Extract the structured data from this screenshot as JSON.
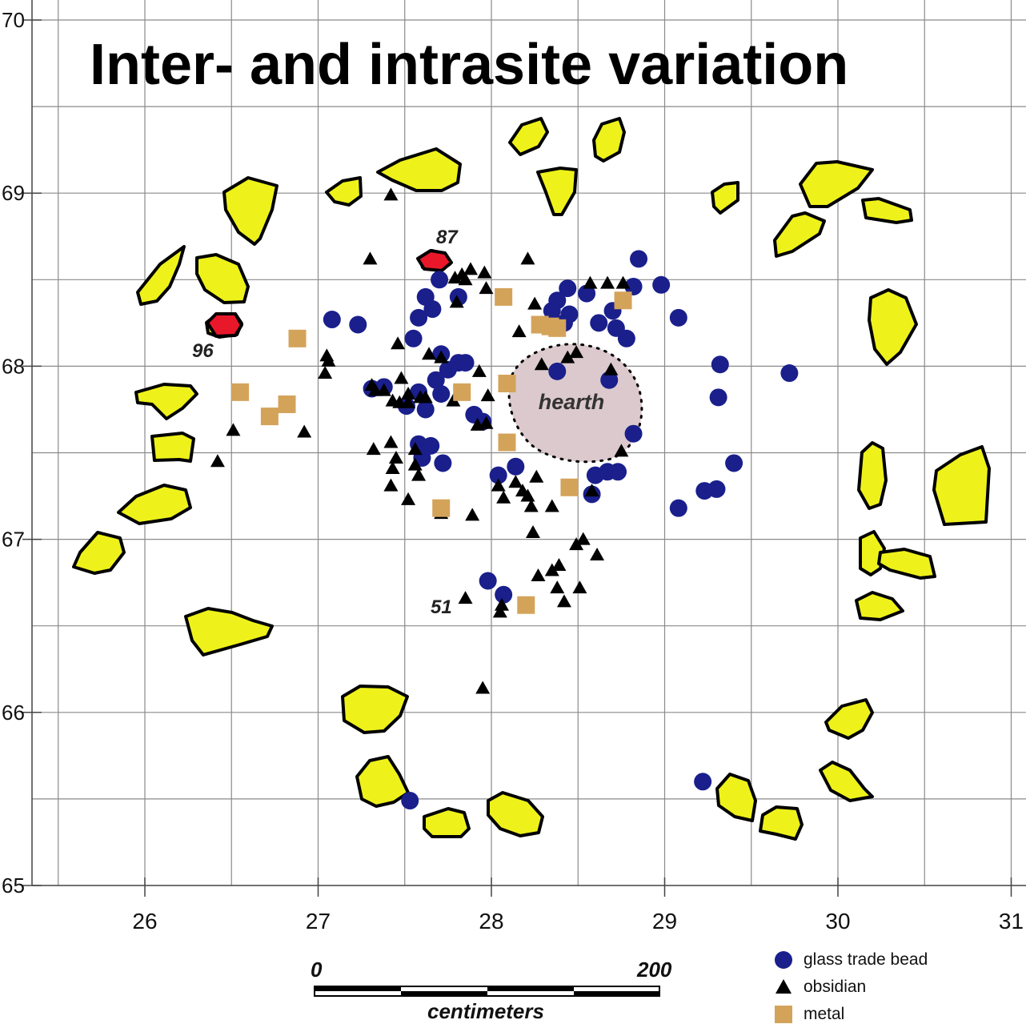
{
  "title": "Inter- and intrasite variation",
  "chart_data": {
    "type": "scatter",
    "x_ticks": [
      "26",
      "27",
      "28",
      "29",
      "30",
      "31"
    ],
    "y_ticks": [
      "70",
      "69",
      "68",
      "67",
      "66",
      "65"
    ],
    "xlim": [
      25.45,
      31.1
    ],
    "ylim": [
      65,
      70.1
    ],
    "grid": true,
    "colors": {
      "glass": "#1a1f8c",
      "obsidian": "#000000",
      "metal": "#d4a35a",
      "rock_fill": "#eef21a",
      "red_rock_fill": "#e8182a",
      "hearth_fill": "#dcc9cd"
    },
    "series": [
      {
        "name": "glass trade bead",
        "marker": "circle",
        "points": [
          [
            28.85,
            68.62
          ],
          [
            28.98,
            68.47
          ],
          [
            29.08,
            68.28
          ],
          [
            28.82,
            68.46
          ],
          [
            28.78,
            68.16
          ],
          [
            28.55,
            68.42
          ],
          [
            28.62,
            68.25
          ],
          [
            28.7,
            68.32
          ],
          [
            28.44,
            68.45
          ],
          [
            28.38,
            68.38
          ],
          [
            28.42,
            68.25
          ],
          [
            28.35,
            68.32
          ],
          [
            28.45,
            68.3
          ],
          [
            28.72,
            68.22
          ],
          [
            27.7,
            68.5
          ],
          [
            27.62,
            68.4
          ],
          [
            27.66,
            68.33
          ],
          [
            27.58,
            68.28
          ],
          [
            27.55,
            68.16
          ],
          [
            27.08,
            68.27
          ],
          [
            27.23,
            68.24
          ],
          [
            27.81,
            68.4
          ],
          [
            27.71,
            68.07
          ],
          [
            27.75,
            67.98
          ],
          [
            27.81,
            68.02
          ],
          [
            27.85,
            68.02
          ],
          [
            27.68,
            67.92
          ],
          [
            27.58,
            67.85
          ],
          [
            27.71,
            67.84
          ],
          [
            27.62,
            67.75
          ],
          [
            27.51,
            67.77
          ],
          [
            27.38,
            67.88
          ],
          [
            27.31,
            67.87
          ],
          [
            27.9,
            67.72
          ],
          [
            27.95,
            67.68
          ],
          [
            27.58,
            67.55
          ],
          [
            27.65,
            67.54
          ],
          [
            27.6,
            67.47
          ],
          [
            27.72,
            67.44
          ],
          [
            28.04,
            67.37
          ],
          [
            28.14,
            67.42
          ],
          [
            28.38,
            67.97
          ],
          [
            28.68,
            67.92
          ],
          [
            28.82,
            67.61
          ],
          [
            28.67,
            67.39
          ],
          [
            28.73,
            67.39
          ],
          [
            28.6,
            67.37
          ],
          [
            28.58,
            67.26
          ],
          [
            29.32,
            68.01
          ],
          [
            29.31,
            67.82
          ],
          [
            29.72,
            67.96
          ],
          [
            29.4,
            67.44
          ],
          [
            29.3,
            67.29
          ],
          [
            29.23,
            67.28
          ],
          [
            29.08,
            67.18
          ],
          [
            27.98,
            66.76
          ],
          [
            28.07,
            66.68
          ],
          [
            29.22,
            65.6
          ],
          [
            27.53,
            65.49
          ]
        ]
      },
      {
        "name": "obsidian",
        "marker": "triangle",
        "points": [
          [
            27.42,
            68.99
          ],
          [
            27.3,
            68.62
          ],
          [
            28.21,
            68.62
          ],
          [
            27.88,
            68.56
          ],
          [
            27.96,
            68.54
          ],
          [
            27.79,
            68.51
          ],
          [
            27.83,
            68.53
          ],
          [
            27.85,
            68.5
          ],
          [
            27.97,
            68.45
          ],
          [
            27.8,
            68.37
          ],
          [
            28.25,
            68.36
          ],
          [
            28.57,
            68.48
          ],
          [
            28.67,
            68.48
          ],
          [
            28.76,
            68.48
          ],
          [
            28.16,
            68.2
          ],
          [
            27.46,
            68.13
          ],
          [
            27.64,
            68.07
          ],
          [
            27.71,
            68.05
          ],
          [
            27.05,
            68.06
          ],
          [
            27.06,
            68.03
          ],
          [
            27.04,
            67.96
          ],
          [
            27.48,
            67.93
          ],
          [
            27.93,
            67.97
          ],
          [
            28.29,
            68.01
          ],
          [
            28.44,
            68.05
          ],
          [
            28.49,
            68.08
          ],
          [
            28.69,
            67.98
          ],
          [
            27.31,
            67.89
          ],
          [
            27.33,
            67.86
          ],
          [
            27.38,
            67.86
          ],
          [
            27.52,
            67.84
          ],
          [
            27.59,
            67.82
          ],
          [
            27.43,
            67.8
          ],
          [
            27.47,
            67.79
          ],
          [
            27.52,
            67.79
          ],
          [
            27.62,
            67.82
          ],
          [
            27.78,
            67.8
          ],
          [
            27.98,
            67.83
          ],
          [
            27.92,
            67.66
          ],
          [
            27.97,
            67.67
          ],
          [
            26.51,
            67.63
          ],
          [
            26.42,
            67.45
          ],
          [
            26.92,
            67.62
          ],
          [
            27.42,
            67.56
          ],
          [
            27.32,
            67.52
          ],
          [
            27.56,
            67.52
          ],
          [
            27.45,
            67.47
          ],
          [
            27.43,
            67.41
          ],
          [
            27.56,
            67.43
          ],
          [
            27.58,
            67.37
          ],
          [
            27.42,
            67.31
          ],
          [
            28.14,
            67.33
          ],
          [
            28.26,
            67.36
          ],
          [
            28.04,
            67.31
          ],
          [
            28.18,
            67.28
          ],
          [
            28.21,
            67.25
          ],
          [
            28.07,
            67.24
          ],
          [
            27.52,
            67.23
          ],
          [
            27.71,
            67.15
          ],
          [
            27.89,
            67.14
          ],
          [
            28.23,
            67.19
          ],
          [
            28.35,
            67.19
          ],
          [
            28.58,
            67.28
          ],
          [
            28.24,
            67.04
          ],
          [
            28.53,
            67.0
          ],
          [
            28.49,
            66.97
          ],
          [
            28.61,
            66.91
          ],
          [
            28.27,
            66.79
          ],
          [
            28.35,
            66.82
          ],
          [
            28.39,
            66.85
          ],
          [
            28.51,
            66.72
          ],
          [
            28.38,
            66.72
          ],
          [
            28.42,
            66.64
          ],
          [
            27.85,
            66.66
          ],
          [
            28.06,
            66.62
          ],
          [
            28.05,
            66.58
          ],
          [
            27.95,
            66.14
          ],
          [
            28.75,
            67.51
          ],
          [
            28.09,
            67.56
          ]
        ]
      },
      {
        "name": "metal",
        "marker": "square",
        "points": [
          [
            28.07,
            68.4
          ],
          [
            28.76,
            68.38
          ],
          [
            28.28,
            68.24
          ],
          [
            28.34,
            68.23
          ],
          [
            28.38,
            68.22
          ],
          [
            26.88,
            68.16
          ],
          [
            26.55,
            67.85
          ],
          [
            26.72,
            67.71
          ],
          [
            26.82,
            67.78
          ],
          [
            27.83,
            67.85
          ],
          [
            28.09,
            67.9
          ],
          [
            28.09,
            67.56
          ],
          [
            28.45,
            67.3
          ],
          [
            27.71,
            67.18
          ],
          [
            28.2,
            66.62
          ]
        ]
      }
    ],
    "annotations": [
      "87",
      "96",
      "51",
      "hearth"
    ],
    "scale_bar": {
      "start_label": "0",
      "end_label": "200",
      "unit_label": "centimeters"
    },
    "legend_position": "bottom-right"
  },
  "legend": [
    {
      "label": "glass trade bead",
      "symbol": "circle",
      "color": "#1a1f8c"
    },
    {
      "label": "obsidian",
      "symbol": "triangle",
      "color": "#000000"
    },
    {
      "label": "metal",
      "symbol": "square",
      "color": "#d4a35a"
    }
  ]
}
